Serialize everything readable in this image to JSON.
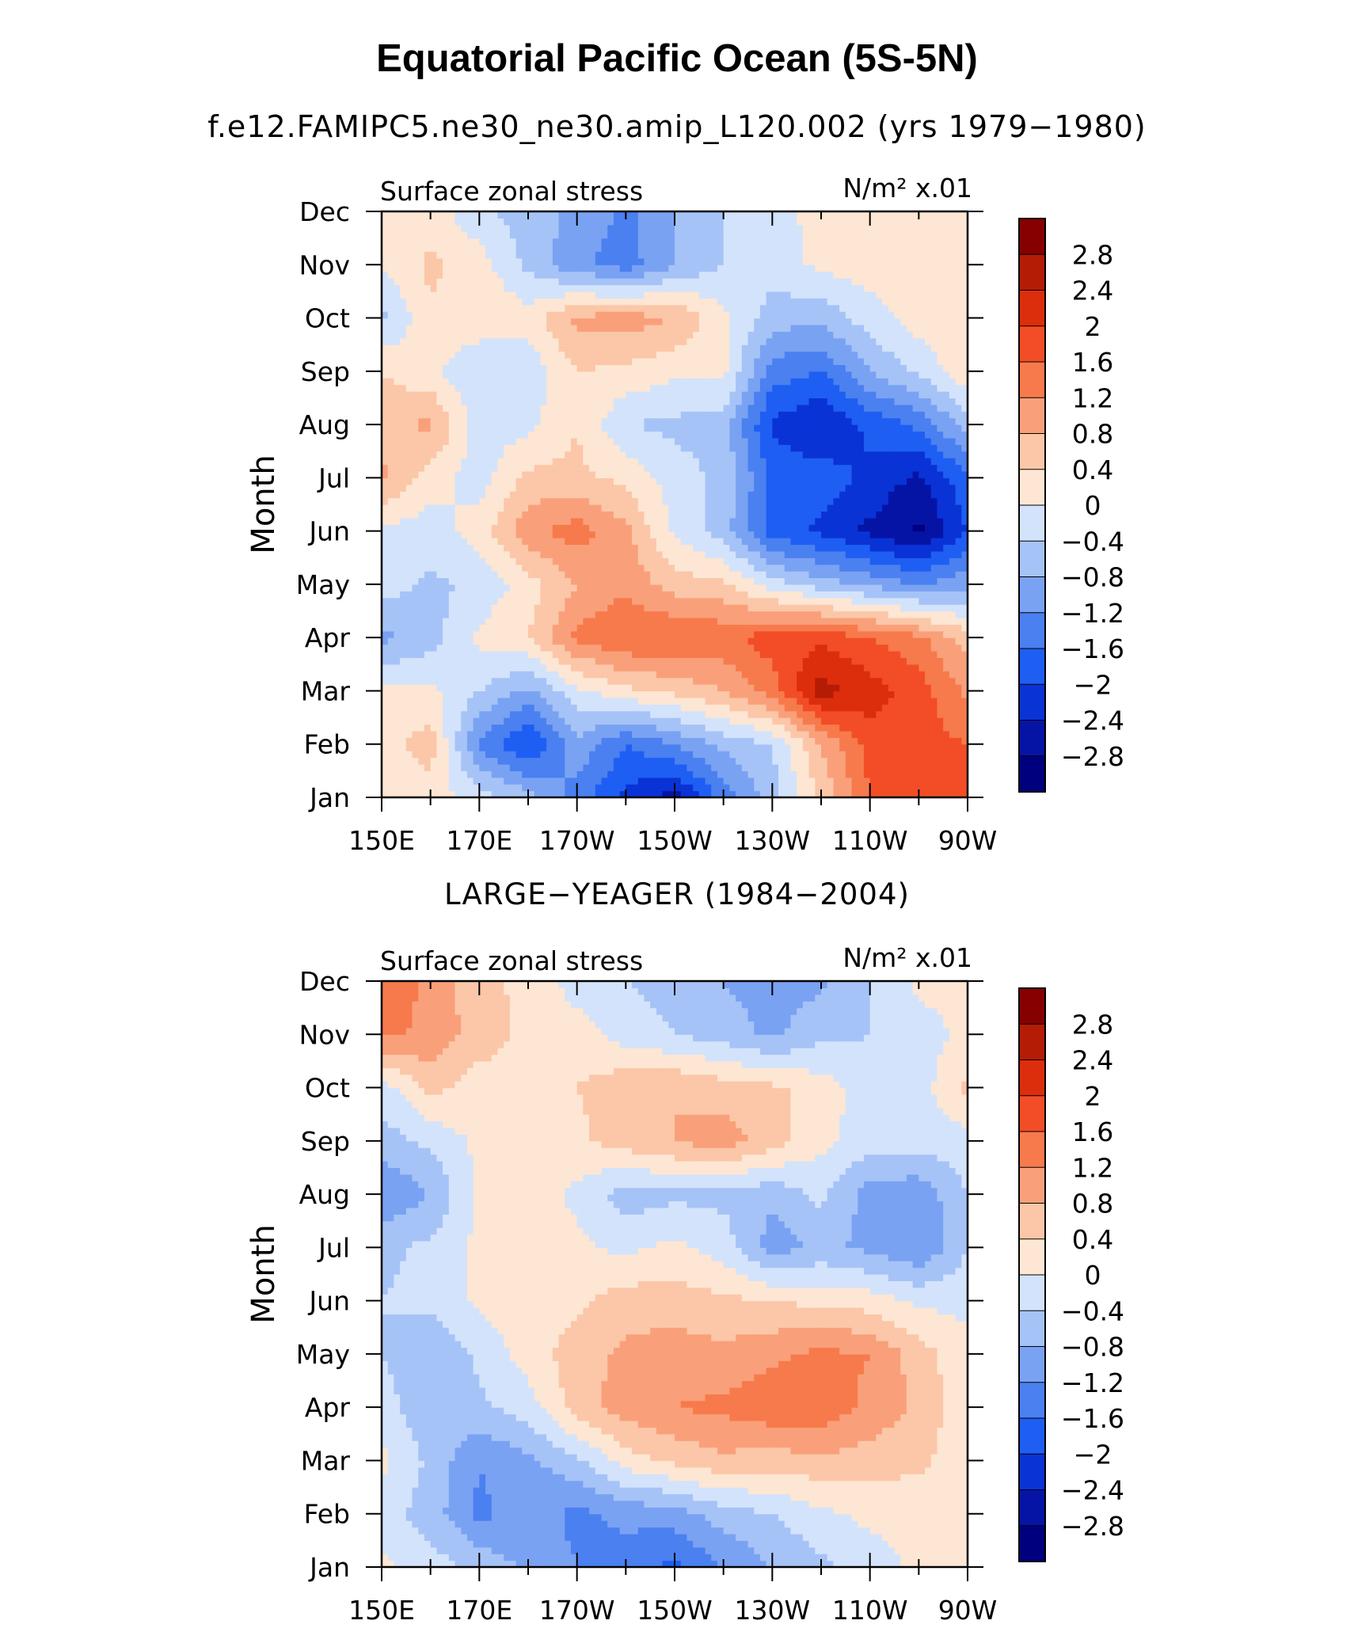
{
  "title": "Equatorial Pacific Ocean (5S-5N)",
  "colors": {
    "scale": [
      "#00007f",
      "#0614a6",
      "#0a33d6",
      "#1e5ef2",
      "#4a80f0",
      "#7aa2f3",
      "#a6c3f7",
      "#d3e3fb",
      "#fde6d3",
      "#fbc7a8",
      "#f9a07a",
      "#f77a4c",
      "#f24d26",
      "#dc2e0c",
      "#b51c06",
      "#870000"
    ]
  },
  "chart_data": [
    {
      "type": "heatmap",
      "subtitle": "f.e12.FAMIPC5.ne30_ne30.amip_L120.002 (yrs 1979−1980)",
      "left_label": "Surface zonal stress",
      "right_label": "N/m² x.01",
      "xlabel": "",
      "ylabel": "Month",
      "xticks": [
        "150E",
        "170E",
        "170W",
        "150W",
        "130W",
        "110W",
        "90W"
      ],
      "xlim_deg_east": [
        150,
        270
      ],
      "yticks": [
        "Jan",
        "Feb",
        "Mar",
        "Apr",
        "May",
        "Jun",
        "Jul",
        "Aug",
        "Sep",
        "Oct",
        "Nov",
        "Dec"
      ],
      "colorbar_labels": [
        "2.8",
        "2.4",
        "2",
        "1.6",
        "1.2",
        "0.8",
        "0.4",
        "0",
        "−0.4",
        "−0.8",
        "−1.2",
        "−1.6",
        "−2",
        "−2.4",
        "−2.8"
      ],
      "contour_levels": [
        -2.8,
        -2.4,
        -2.0,
        -1.6,
        -1.2,
        -0.8,
        -0.4,
        0,
        0.4,
        0.8,
        1.2,
        1.6,
        2.0,
        2.4,
        2.8
      ],
      "x_deg_east": [
        150,
        160,
        170,
        180,
        190,
        200,
        210,
        220,
        230,
        240,
        250,
        260,
        270
      ],
      "months": [
        "Jan",
        "Feb",
        "Mar",
        "Apr",
        "May",
        "Jun",
        "Jul",
        "Aug",
        "Sep",
        "Oct",
        "Nov",
        "Dec"
      ],
      "values": [
        [
          0.3,
          0.2,
          -0.2,
          -0.6,
          -1.4,
          -2.1,
          -2.6,
          -1.4,
          -0.6,
          0.5,
          1.6,
          1.7,
          1.6
        ],
        [
          0.2,
          0.6,
          -1.3,
          -2.1,
          -0.9,
          -1.6,
          -1.2,
          -0.7,
          -0.4,
          0.8,
          1.8,
          1.8,
          1.6
        ],
        [
          0.1,
          0.1,
          -0.4,
          -0.9,
          -0.1,
          0.3,
          0.5,
          0.8,
          1.4,
          2.6,
          2.2,
          1.8,
          1.1
        ],
        [
          -0.9,
          -0.6,
          0.1,
          0.4,
          1.3,
          1.6,
          1.6,
          1.5,
          1.8,
          1.9,
          1.6,
          1.3,
          0.6
        ],
        [
          -0.2,
          -0.5,
          -0.3,
          0.2,
          0.8,
          1.1,
          0.6,
          0.5,
          -0.2,
          -0.6,
          -0.9,
          -1.2,
          -0.9
        ],
        [
          -0.1,
          -0.2,
          0.2,
          1.1,
          1.4,
          0.9,
          -0.1,
          -0.6,
          -1.8,
          -2.1,
          -2.5,
          -2.9,
          -2.0
        ],
        [
          0.9,
          0.2,
          -0.2,
          0.5,
          0.5,
          0.3,
          -0.2,
          -0.5,
          -1.7,
          -1.8,
          -2.1,
          -2.5,
          -1.7
        ],
        [
          0.6,
          0.9,
          -0.2,
          -0.1,
          0.4,
          -0.4,
          -0.5,
          -0.6,
          -2.1,
          -2.4,
          -1.9,
          -1.5,
          -0.6
        ],
        [
          0.4,
          0.1,
          -0.4,
          -0.3,
          0.4,
          0.3,
          0.1,
          0.1,
          -1.4,
          -1.6,
          -0.8,
          -0.3,
          0.3
        ],
        [
          -0.5,
          0.3,
          0.3,
          0.2,
          0.9,
          1.0,
          0.8,
          0.1,
          -0.6,
          -0.7,
          -0.2,
          0.2,
          0.2
        ],
        [
          0.0,
          0.5,
          0.2,
          -0.5,
          -1.1,
          -1.4,
          -0.8,
          -0.4,
          -0.2,
          0.1,
          0.2,
          0.3,
          0.3
        ],
        [
          0.3,
          0.2,
          -0.3,
          -0.6,
          -0.9,
          -1.3,
          -0.8,
          -0.4,
          -0.1,
          0.1,
          0.2,
          0.2,
          0.4
        ]
      ]
    },
    {
      "type": "heatmap",
      "subtitle": "LARGE−YEAGER (1984−2004)",
      "left_label": "Surface zonal stress",
      "right_label": "N/m² x.01",
      "xlabel": "",
      "ylabel": "Month",
      "xticks": [
        "150E",
        "170E",
        "170W",
        "150W",
        "130W",
        "110W",
        "90W"
      ],
      "xlim_deg_east": [
        150,
        270
      ],
      "yticks": [
        "Jan",
        "Feb",
        "Mar",
        "Apr",
        "May",
        "Jun",
        "Jul",
        "Aug",
        "Sep",
        "Oct",
        "Nov",
        "Dec"
      ],
      "colorbar_labels": [
        "2.8",
        "2.4",
        "2",
        "1.6",
        "1.2",
        "0.8",
        "0.4",
        "0",
        "−0.4",
        "−0.8",
        "−1.2",
        "−1.6",
        "−2",
        "−2.4",
        "−2.8"
      ],
      "contour_levels": [
        -2.8,
        -2.4,
        -2.0,
        -1.6,
        -1.2,
        -0.8,
        -0.4,
        0,
        0.4,
        0.8,
        1.2,
        1.6,
        2.0,
        2.4,
        2.8
      ],
      "x_deg_east": [
        150,
        160,
        170,
        180,
        190,
        200,
        210,
        220,
        230,
        240,
        250,
        260,
        270
      ],
      "months": [
        "Jan",
        "Feb",
        "Mar",
        "Apr",
        "May",
        "Jun",
        "Jul",
        "Aug",
        "Sep",
        "Oct",
        "Nov",
        "Dec"
      ],
      "values": [
        [
          0.1,
          -0.2,
          -0.5,
          -0.9,
          -1.2,
          -1.4,
          -1.7,
          -1.2,
          -0.8,
          -0.5,
          -0.2,
          0.1,
          0.1
        ],
        [
          -0.2,
          -0.6,
          -1.3,
          -1.0,
          -1.3,
          -1.1,
          -1.0,
          -0.6,
          -0.4,
          -0.1,
          0.1,
          0.1,
          0.1
        ],
        [
          0.1,
          -0.5,
          -1.2,
          -0.9,
          -0.5,
          0.2,
          0.5,
          0.7,
          0.6,
          0.7,
          0.6,
          0.5,
          0.1
        ],
        [
          -0.2,
          -0.7,
          -0.5,
          -0.2,
          0.6,
          1.0,
          1.2,
          1.3,
          1.5,
          1.5,
          1.1,
          0.7,
          0.1
        ],
        [
          -0.4,
          -0.8,
          -0.3,
          0.2,
          0.6,
          0.9,
          1.0,
          0.9,
          1.1,
          1.3,
          1.2,
          0.6,
          0.1
        ],
        [
          -0.4,
          -0.3,
          0.1,
          0.2,
          0.3,
          0.6,
          0.6,
          0.5,
          0.4,
          0.3,
          0.2,
          -0.1,
          -0.1
        ],
        [
          -0.5,
          -0.3,
          0.1,
          0.2,
          0.1,
          -0.1,
          0.1,
          -0.2,
          -1.0,
          -0.7,
          -0.9,
          -1.2,
          -0.4
        ],
        [
          -1.2,
          -0.8,
          0.1,
          0.2,
          -0.1,
          -0.6,
          -0.5,
          -0.5,
          -0.7,
          -0.3,
          -1.0,
          -1.1,
          -0.4
        ],
        [
          -0.6,
          -0.3,
          0.1,
          0.1,
          0.3,
          0.6,
          0.8,
          1.0,
          0.6,
          0.1,
          -0.2,
          -0.2,
          -0.2
        ],
        [
          -0.2,
          0.5,
          0.2,
          0.3,
          0.4,
          0.7,
          0.8,
          0.6,
          0.5,
          0.2,
          -0.2,
          -0.2,
          0.5
        ],
        [
          1.3,
          1.1,
          0.6,
          0.3,
          0.2,
          -0.2,
          -0.4,
          -0.6,
          -0.9,
          -0.5,
          -0.4,
          -0.2,
          0.1
        ],
        [
          1.5,
          1.1,
          0.5,
          0.3,
          -0.2,
          -0.4,
          -0.6,
          -0.8,
          -1.0,
          -0.9,
          -0.4,
          0.1,
          0.2
        ]
      ]
    }
  ]
}
